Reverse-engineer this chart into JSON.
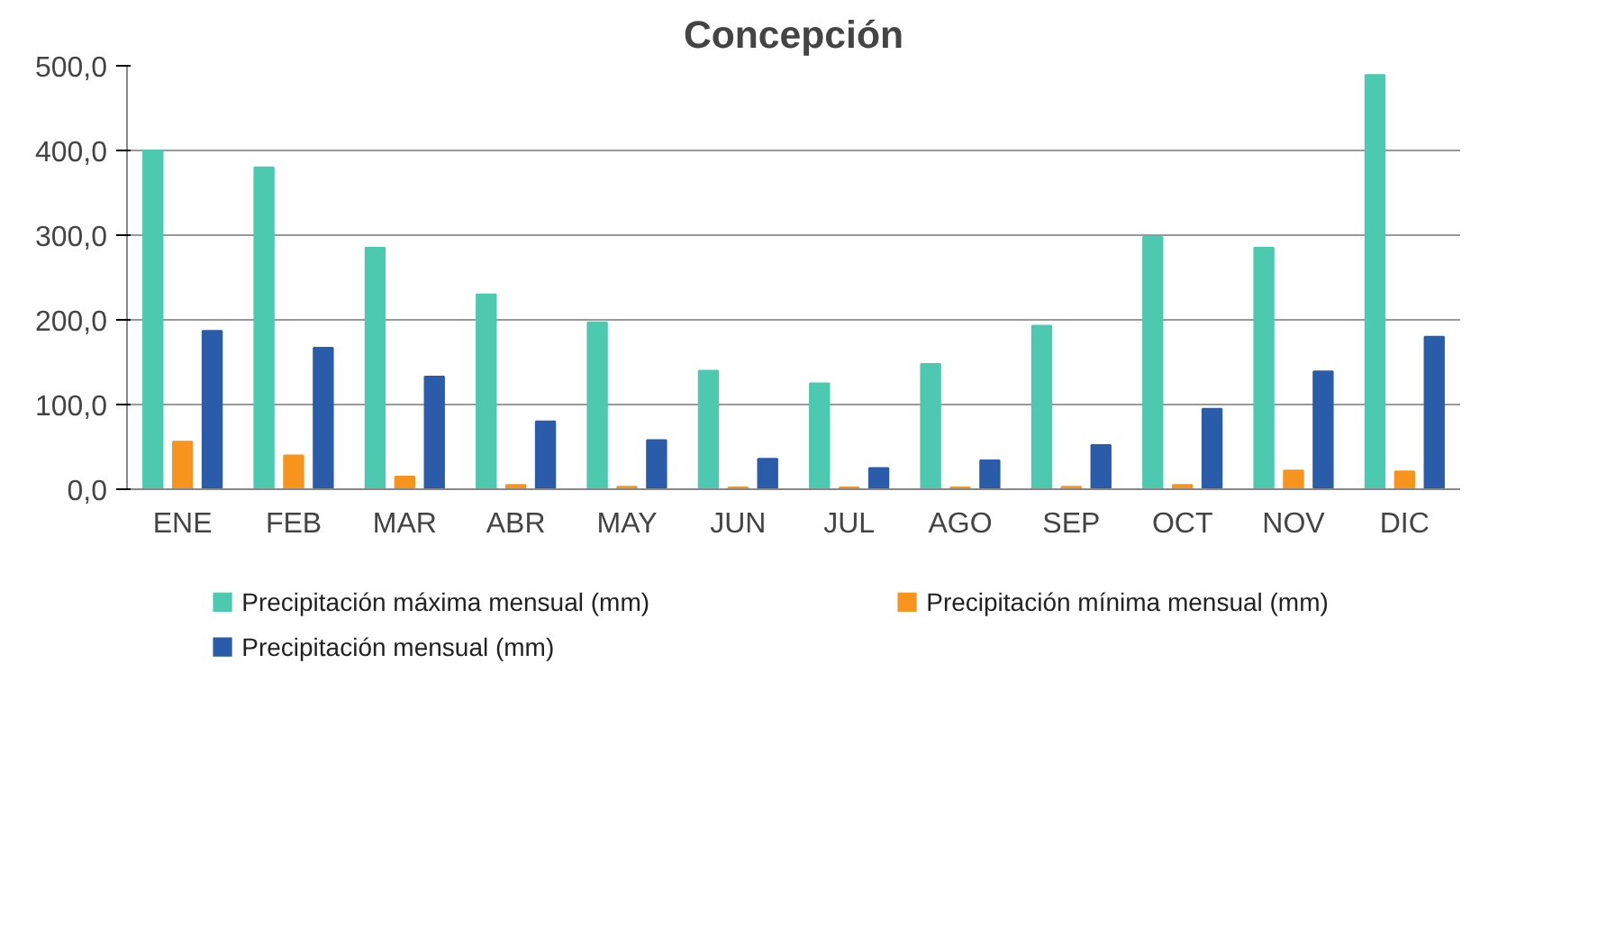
{
  "chart_data": {
    "type": "bar",
    "title": "Concepción",
    "categories": [
      "ENE",
      "FEB",
      "MAR",
      "ABR",
      "MAY",
      "JUN",
      "JUL",
      "AGO",
      "SEP",
      "OCT",
      "NOV",
      "DIC"
    ],
    "series": [
      {
        "name": "Precipitación máxima mensual (mm)",
        "color": "#4dc9b0",
        "values": [
          400,
          380,
          285,
          230,
          197,
          140,
          125,
          148,
          193,
          298,
          285,
          489
        ]
      },
      {
        "name": "Precipitación mínima mensual (mm)",
        "color": "#f7941d",
        "values": [
          56,
          40,
          15,
          5,
          3,
          2,
          2,
          2,
          3,
          5,
          22,
          21
        ]
      },
      {
        "name": "Precipitación mensual (mm)",
        "color": "#2a5caa",
        "values": [
          187,
          167,
          133,
          80,
          58,
          36,
          25,
          34,
          52,
          95,
          139,
          180
        ]
      }
    ],
    "ylim": [
      0,
      500
    ],
    "yticks": [
      {
        "value": 0,
        "label": "0,0"
      },
      {
        "value": 100,
        "label": "100,0"
      },
      {
        "value": 200,
        "label": "200,0"
      },
      {
        "value": 300,
        "label": "300,0"
      },
      {
        "value": 400,
        "label": "400,0"
      },
      {
        "value": 500,
        "label": "500,0"
      }
    ],
    "grid": "y",
    "legend": "bottom"
  }
}
